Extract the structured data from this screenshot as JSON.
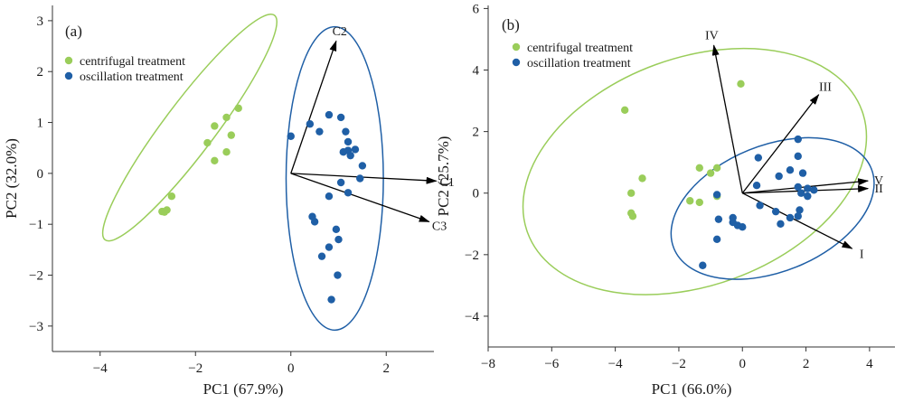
{
  "colors": {
    "centrifugal": "#9acd5a",
    "oscillation": "#1f5fa6",
    "ellipse_green": "#9acd5a",
    "ellipse_blue": "#1f5fa6",
    "arrow": "#000000"
  },
  "chart_data": [
    {
      "type": "scatter",
      "panel_label": "(a)",
      "xlabel": "PC1 (67.9%)",
      "ylabel": "PC2 (32.0%)",
      "xlim": [
        -5,
        3
      ],
      "ylim": [
        -3.5,
        3.3
      ],
      "xticks": [
        -4,
        -2,
        0,
        2
      ],
      "yticks": [
        -3,
        -2,
        -1,
        0,
        1,
        2,
        3
      ],
      "legend": {
        "position": "top-left",
        "entries": [
          "centrifugal treatment",
          "oscillation treatment"
        ]
      },
      "series": [
        {
          "name": "centrifugal treatment",
          "points": [
            [
              -1.1,
              1.28
            ],
            [
              -1.35,
              1.1
            ],
            [
              -1.6,
              0.93
            ],
            [
              -1.25,
              0.75
            ],
            [
              -1.75,
              0.6
            ],
            [
              -1.35,
              0.42
            ],
            [
              -1.6,
              0.25
            ],
            [
              -2.5,
              -0.45
            ],
            [
              -2.6,
              -0.72
            ],
            [
              -2.7,
              -0.75
            ],
            [
              -2.65,
              -0.76
            ]
          ]
        },
        {
          "name": "oscillation treatment",
          "points": [
            [
              0.8,
              1.15
            ],
            [
              1.05,
              1.1
            ],
            [
              0.4,
              0.97
            ],
            [
              0.6,
              0.82
            ],
            [
              1.15,
              0.82
            ],
            [
              0.0,
              0.73
            ],
            [
              1.2,
              0.62
            ],
            [
              1.2,
              0.45
            ],
            [
              1.35,
              0.47
            ],
            [
              1.1,
              0.42
            ],
            [
              1.25,
              0.35
            ],
            [
              1.5,
              0.15
            ],
            [
              1.45,
              -0.1
            ],
            [
              1.05,
              -0.18
            ],
            [
              1.2,
              -0.38
            ],
            [
              0.8,
              -0.45
            ],
            [
              0.45,
              -0.85
            ],
            [
              0.5,
              -0.95
            ],
            [
              0.95,
              -1.1
            ],
            [
              1.0,
              -1.3
            ],
            [
              0.8,
              -1.45
            ],
            [
              0.65,
              -1.63
            ],
            [
              0.98,
              -2.0
            ],
            [
              0.85,
              -2.48
            ]
          ]
        }
      ],
      "ellipses": [
        {
          "group": "centrifugal treatment",
          "cx": -2.12,
          "cy": 0.9,
          "rx": 2.95,
          "ry": 0.5,
          "angle_deg": 53
        },
        {
          "group": "oscillation treatment",
          "cx": 0.92,
          "cy": -0.1,
          "rx": 1.02,
          "ry": 2.98,
          "angle_deg": 0
        }
      ],
      "vectors": [
        {
          "label": "C2",
          "x": 0.95,
          "y": 2.6
        },
        {
          "label": "C1",
          "x": 3.05,
          "y": -0.15
        },
        {
          "label": "C3",
          "x": 2.9,
          "y": -0.95
        }
      ]
    },
    {
      "type": "scatter",
      "panel_label": "(b)",
      "xlabel": "PC1 (66.0%)",
      "ylabel": "PC2 (25.7%)",
      "xlim": [
        -8,
        4.8
      ],
      "ylim": [
        -5,
        6.1
      ],
      "xticks": [
        -8,
        -6,
        -4,
        -2,
        0,
        2,
        4
      ],
      "yticks": [
        -4,
        -2,
        0,
        2,
        4,
        6
      ],
      "legend": {
        "position": "top-left",
        "entries": [
          "centrifugal treatment",
          "oscillation treatment"
        ]
      },
      "series": [
        {
          "name": "centrifugal treatment",
          "points": [
            [
              -0.05,
              3.55
            ],
            [
              -3.7,
              2.7
            ],
            [
              -1.35,
              0.82
            ],
            [
              -0.8,
              0.82
            ],
            [
              -1.0,
              0.65
            ],
            [
              -3.15,
              0.48
            ],
            [
              -3.5,
              0.0
            ],
            [
              -0.8,
              -0.1
            ],
            [
              -1.65,
              -0.25
            ],
            [
              -1.35,
              -0.3
            ],
            [
              -3.5,
              -0.65
            ],
            [
              -3.45,
              -0.75
            ]
          ]
        },
        {
          "name": "oscillation treatment",
          "points": [
            [
              1.75,
              1.75
            ],
            [
              1.75,
              1.2
            ],
            [
              1.5,
              0.75
            ],
            [
              1.9,
              0.65
            ],
            [
              1.15,
              0.55
            ],
            [
              0.5,
              1.15
            ],
            [
              0.45,
              0.25
            ],
            [
              1.75,
              0.2
            ],
            [
              2.05,
              0.15
            ],
            [
              2.25,
              0.1
            ],
            [
              1.85,
              0.0
            ],
            [
              -0.8,
              -0.05
            ],
            [
              2.05,
              -0.1
            ],
            [
              0.55,
              -0.4
            ],
            [
              1.05,
              -0.6
            ],
            [
              1.8,
              -0.55
            ],
            [
              1.75,
              -0.75
            ],
            [
              -0.75,
              -0.85
            ],
            [
              -0.3,
              -0.8
            ],
            [
              -0.3,
              -0.95
            ],
            [
              -0.15,
              -1.05
            ],
            [
              0.0,
              -1.1
            ],
            [
              1.5,
              -0.8
            ],
            [
              1.2,
              -1.0
            ],
            [
              -0.8,
              -1.5
            ],
            [
              -1.25,
              -2.35
            ]
          ]
        }
      ],
      "ellipses": [
        {
          "group": "centrifugal treatment",
          "cx": -1.5,
          "cy": 0.7,
          "rx": 5.6,
          "ry": 3.7,
          "angle_deg": 20
        },
        {
          "group": "oscillation treatment",
          "cx": 0.95,
          "cy": -0.5,
          "rx": 3.35,
          "ry": 2.05,
          "angle_deg": 22
        }
      ],
      "vectors": [
        {
          "label": "IV",
          "x": -0.9,
          "y": 4.8
        },
        {
          "label": "III",
          "x": 2.4,
          "y": 3.2
        },
        {
          "label": "V",
          "x": 3.95,
          "y": 0.4
        },
        {
          "label": "II",
          "x": 3.95,
          "y": 0.15
        },
        {
          "label": "I",
          "x": 3.45,
          "y": -1.8
        }
      ]
    }
  ]
}
